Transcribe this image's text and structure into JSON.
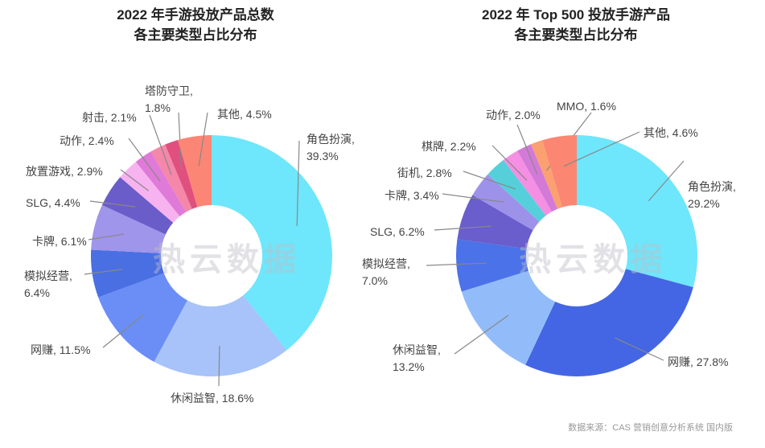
{
  "chart_data": [
    {
      "type": "pie",
      "variant": "donut",
      "title": "2022 年手游投放产品总数\n各主要类型占比分布",
      "watermark": "热云数据",
      "slices": [
        {
          "label": "角色扮演",
          "value": 39.3,
          "display": "角色扮演,\n39.3%",
          "color": "#6ee6fb"
        },
        {
          "label": "休闲益智",
          "value": 18.6,
          "display": "休闲益智, 18.6%",
          "color": "#a7c3f9"
        },
        {
          "label": "网赚",
          "value": 11.5,
          "display": "网赚, 11.5%",
          "color": "#6a8ef6"
        },
        {
          "label": "模拟经营",
          "value": 6.4,
          "display": "模拟经营,\n6.4%",
          "color": "#4a6fe3"
        },
        {
          "label": "卡牌",
          "value": 6.1,
          "display": "卡牌, 6.1%",
          "color": "#9f95ea"
        },
        {
          "label": "SLG",
          "value": 4.4,
          "display": "SLG, 4.4%",
          "color": "#6a5cc9"
        },
        {
          "label": "放置游戏",
          "value": 2.9,
          "display": "放置游戏, 2.9%",
          "color": "#f7b3ef"
        },
        {
          "label": "动作",
          "value": 2.4,
          "display": "动作, 2.4%",
          "color": "#df7ad9"
        },
        {
          "label": "射击",
          "value": 2.1,
          "display": "射击, 2.1%",
          "color": "#f587a8"
        },
        {
          "label": "塔防守卫",
          "value": 1.8,
          "display": "塔防守卫,\n1.8%",
          "color": "#e0507e"
        },
        {
          "label": "其他",
          "value": 4.5,
          "display": "其他, 4.5%",
          "color": "#fb8676"
        }
      ]
    },
    {
      "type": "pie",
      "variant": "donut",
      "title": "2022 年 Top 500 投放手游产品\n各主要类型占比分布",
      "watermark": "热云数据",
      "slices": [
        {
          "label": "角色扮演",
          "value": 29.2,
          "display": "角色扮演,\n29.2%",
          "color": "#6ee6fb"
        },
        {
          "label": "网赚",
          "value": 27.8,
          "display": "网赚, 27.8%",
          "color": "#4466e4"
        },
        {
          "label": "休闲益智",
          "value": 13.2,
          "display": "休闲益智,\n13.2%",
          "color": "#92bcf9"
        },
        {
          "label": "模拟经营",
          "value": 7.0,
          "display": "模拟经营,\n7.0%",
          "color": "#4b72e8"
        },
        {
          "label": "SLG",
          "value": 6.2,
          "display": "SLG, 6.2%",
          "color": "#6a5dcc"
        },
        {
          "label": "卡牌",
          "value": 3.4,
          "display": "卡牌, 3.4%",
          "color": "#9d92ea"
        },
        {
          "label": "街机",
          "value": 2.8,
          "display": "街机, 2.8%",
          "color": "#55d0da"
        },
        {
          "label": "棋牌",
          "value": 2.2,
          "display": "棋牌, 2.2%",
          "color": "#f48fe3"
        },
        {
          "label": "动作",
          "value": 2.0,
          "display": "动作, 2.0%",
          "color": "#d37ad8"
        },
        {
          "label": "MMO",
          "value": 1.6,
          "display": "MMO, 1.6%",
          "color": "#fba070"
        },
        {
          "label": "其他",
          "value": 4.6,
          "display": "其他, 4.6%",
          "color": "#fb8672"
        }
      ]
    }
  ],
  "source": "数据来源：CAS 营销创意分析系统 国内版"
}
